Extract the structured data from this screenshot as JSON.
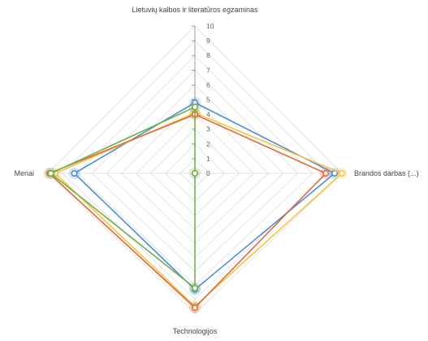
{
  "chart_data": {
    "type": "radar",
    "axes": [
      "Lietuvių kalbos ir literatūros egzaminas",
      "Brandos darbas (...)",
      "Technologijos",
      "Menai"
    ],
    "ticks": [
      "0",
      "1",
      "2",
      "3",
      "4",
      "5",
      "6",
      "7",
      "8",
      "9",
      "10"
    ],
    "range": [
      0,
      10
    ],
    "grid": true,
    "legend": "none",
    "series": [
      {
        "color": "#4a90d9",
        "values": [
          4.8,
          9.5,
          8.3,
          8.2
        ]
      },
      {
        "color": "#f4c542",
        "values": [
          4.1,
          10.0,
          9.5,
          9.5
        ]
      },
      {
        "color": "#e06a3b",
        "values": [
          4.0,
          8.9,
          9.6,
          9.9
        ]
      },
      {
        "color": "#6fb24a",
        "values": [
          4.5,
          0.0,
          8.2,
          9.8
        ]
      }
    ]
  }
}
